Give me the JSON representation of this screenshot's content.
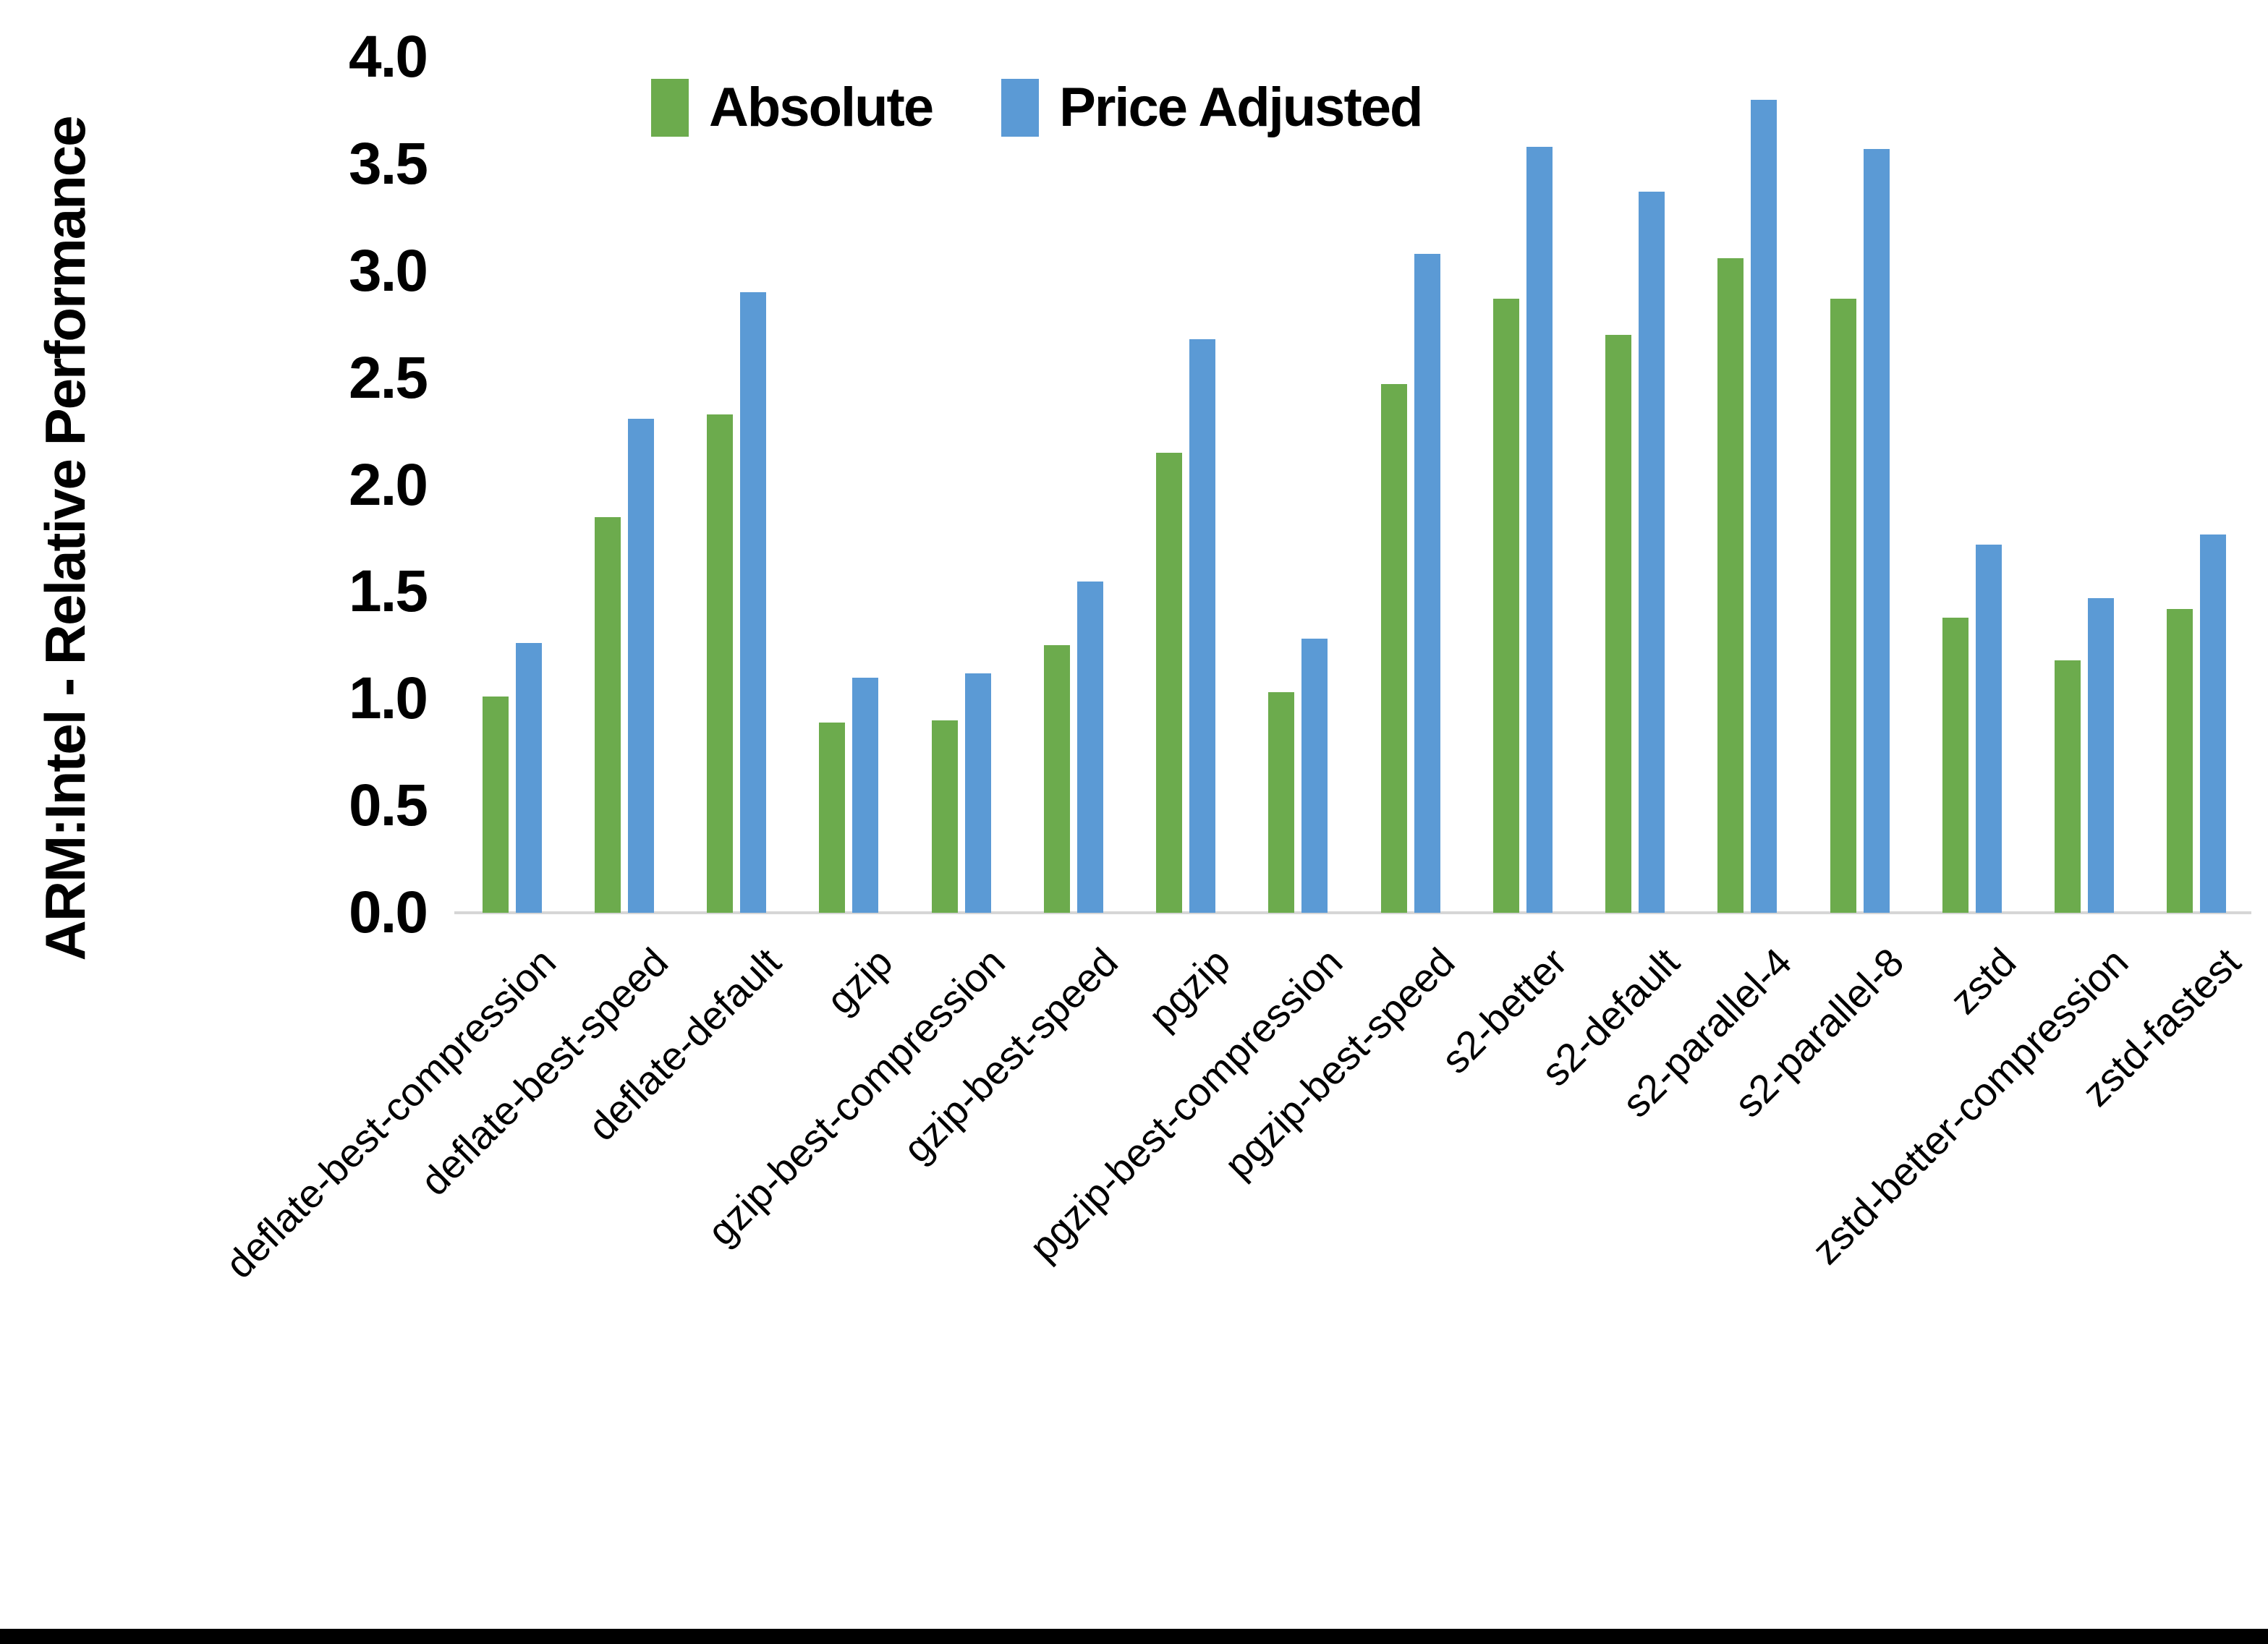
{
  "chart": {
    "y_axis_title": "ARM:Intel - Relative Performance"
  },
  "chart_data": {
    "type": "bar",
    "title": "",
    "xlabel": "",
    "ylabel": "ARM:Intel - Relative Performance",
    "ylim": [
      0.0,
      4.0
    ],
    "ytick_labels": [
      "0.0",
      "0.5",
      "1.0",
      "1.5",
      "2.0",
      "2.5",
      "3.0",
      "3.5",
      "4.0"
    ],
    "grid": false,
    "legend_position": "top-center",
    "categories": [
      "deflate-best-compression",
      "deflate-best-speed",
      "deflate-default",
      "gzip",
      "gzip-best-compression",
      "gzip-best-speed",
      "pgzip",
      "pgzip-best-compression",
      "pgzip-best-speed",
      "s2-better",
      "s2-default",
      "s2-parallel-4",
      "s2-parallel-8",
      "zstd",
      "zstd-better-compression",
      "zstd-fastest"
    ],
    "series": [
      {
        "name": "Absolute",
        "color": "#6CAB4D",
        "values": [
          1.01,
          1.85,
          2.33,
          0.89,
          0.9,
          1.25,
          2.15,
          1.03,
          2.47,
          2.87,
          2.7,
          3.06,
          2.87,
          1.38,
          1.18,
          1.42
        ]
      },
      {
        "name": "Price Adjusted",
        "color": "#5B9AD5",
        "values": [
          1.26,
          2.31,
          2.9,
          1.1,
          1.12,
          1.55,
          2.68,
          1.28,
          3.08,
          3.58,
          3.37,
          3.8,
          3.57,
          1.72,
          1.47,
          1.77
        ]
      }
    ]
  },
  "layout_note_axis_color": "#d6d6d6"
}
